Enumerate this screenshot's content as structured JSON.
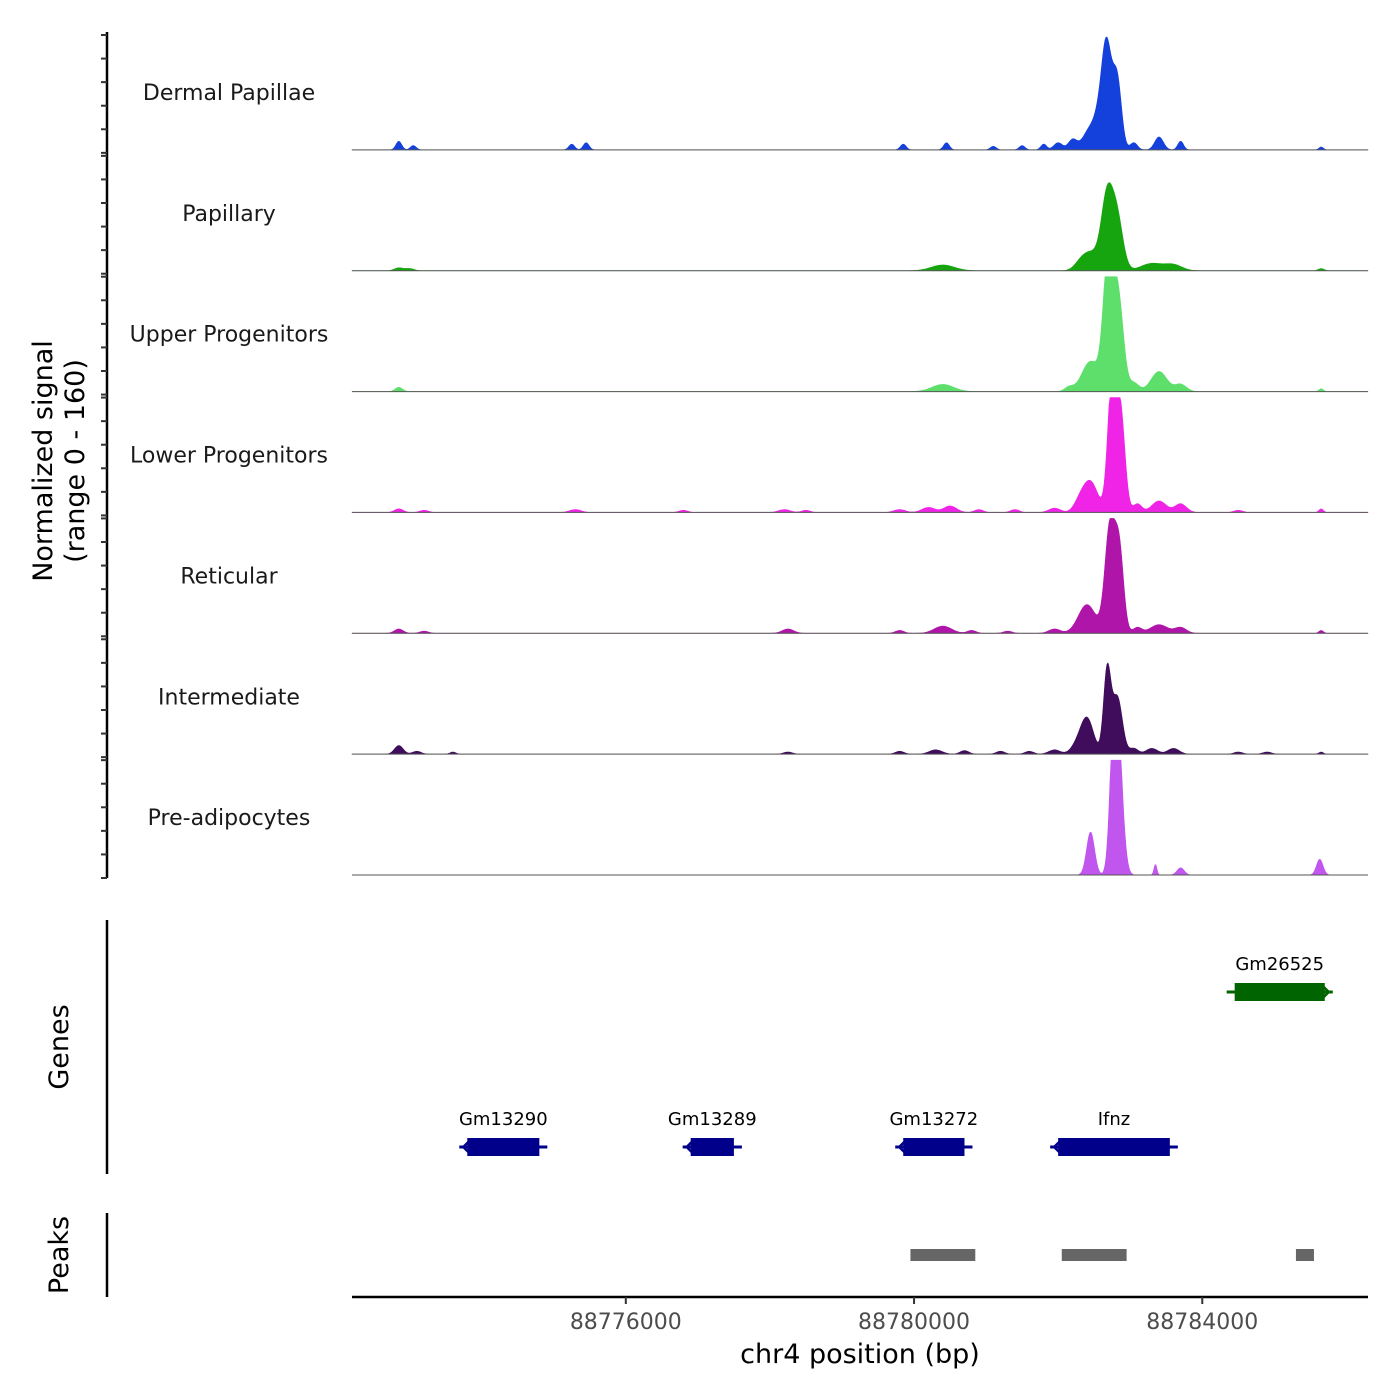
{
  "chart_data": {
    "type": "area",
    "title": "",
    "chromosome": "chr4",
    "xlabel": "chr4 position (bp)",
    "ylabel": "Normalized signal",
    "ylabel_range": "(range 0 - 160)",
    "xlim": [
      88772200,
      88786300
    ],
    "ylim": [
      0,
      160
    ],
    "x_ticks": [
      88776000,
      88780000,
      88784000
    ],
    "x_tick_labels": [
      "88776000",
      "88780000",
      "88784000"
    ],
    "tracks": [
      {
        "name": "Dermal Papillae",
        "color": "#1440DC",
        "peaks": [
          [
            88772850,
            12,
            40
          ],
          [
            88773050,
            6,
            40
          ],
          [
            88775250,
            8,
            40
          ],
          [
            88775450,
            10,
            40
          ],
          [
            88779850,
            8,
            40
          ],
          [
            88780450,
            10,
            40
          ],
          [
            88781100,
            5,
            40
          ],
          [
            88781500,
            6,
            40
          ],
          [
            88781800,
            8,
            40
          ],
          [
            88782000,
            10,
            60
          ],
          [
            88782200,
            14,
            60
          ],
          [
            88782450,
            30,
            100
          ],
          [
            88782550,
            20,
            60
          ],
          [
            88782670,
            148,
            70
          ],
          [
            88782820,
            95,
            60
          ],
          [
            88783050,
            10,
            50
          ],
          [
            88783400,
            18,
            60
          ],
          [
            88783700,
            12,
            40
          ],
          [
            88785650,
            4,
            30
          ]
        ]
      },
      {
        "name": "Papillary",
        "color": "#16A50F",
        "peaks": [
          [
            88772850,
            4,
            60
          ],
          [
            88773000,
            3,
            60
          ],
          [
            88780400,
            8,
            160
          ],
          [
            88782300,
            6,
            80
          ],
          [
            88782450,
            25,
            120
          ],
          [
            88782680,
            100,
            80
          ],
          [
            88782820,
            70,
            80
          ],
          [
            88783300,
            10,
            150
          ],
          [
            88783600,
            8,
            120
          ],
          [
            88785650,
            3,
            40
          ]
        ]
      },
      {
        "name": "Upper Progenitors",
        "color": "#5EDF6C",
        "peaks": [
          [
            88772850,
            6,
            50
          ],
          [
            88780400,
            10,
            150
          ],
          [
            88782150,
            6,
            60
          ],
          [
            88782450,
            42,
            120
          ],
          [
            88782700,
            195,
            70
          ],
          [
            88782840,
            120,
            70
          ],
          [
            88783050,
            12,
            70
          ],
          [
            88783400,
            28,
            110
          ],
          [
            88783700,
            10,
            80
          ],
          [
            88785650,
            4,
            30
          ]
        ]
      },
      {
        "name": "Lower Progenitors",
        "color": "#F024E6",
        "peaks": [
          [
            88772850,
            5,
            60
          ],
          [
            88773200,
            3,
            60
          ],
          [
            88775300,
            4,
            80
          ],
          [
            88776800,
            3,
            60
          ],
          [
            88778200,
            4,
            80
          ],
          [
            88778500,
            3,
            60
          ],
          [
            88779800,
            4,
            80
          ],
          [
            88780200,
            7,
            90
          ],
          [
            88780500,
            9,
            90
          ],
          [
            88780900,
            4,
            60
          ],
          [
            88781400,
            4,
            60
          ],
          [
            88781950,
            6,
            80
          ],
          [
            88782300,
            14,
            80
          ],
          [
            88782450,
            42,
            100
          ],
          [
            88782750,
            190,
            60
          ],
          [
            88782870,
            130,
            60
          ],
          [
            88783100,
            12,
            60
          ],
          [
            88783400,
            16,
            100
          ],
          [
            88783700,
            12,
            80
          ],
          [
            88784500,
            3,
            60
          ],
          [
            88785650,
            5,
            30
          ]
        ]
      },
      {
        "name": "Reticular",
        "color": "#B015A9",
        "peaks": [
          [
            88772850,
            6,
            60
          ],
          [
            88773200,
            3,
            60
          ],
          [
            88778250,
            6,
            80
          ],
          [
            88779800,
            4,
            60
          ],
          [
            88780400,
            10,
            120
          ],
          [
            88780800,
            4,
            60
          ],
          [
            88781300,
            3,
            60
          ],
          [
            88781950,
            6,
            80
          ],
          [
            88782400,
            40,
            120
          ],
          [
            88782720,
            150,
            70
          ],
          [
            88782850,
            110,
            60
          ],
          [
            88783100,
            8,
            60
          ],
          [
            88783400,
            12,
            120
          ],
          [
            88783700,
            8,
            80
          ],
          [
            88785650,
            4,
            30
          ]
        ]
      },
      {
        "name": "Intermediate",
        "color": "#3F0D5C",
        "peaks": [
          [
            88772850,
            12,
            60
          ],
          [
            88773100,
            4,
            60
          ],
          [
            88773600,
            3,
            40
          ],
          [
            88778250,
            3,
            60
          ],
          [
            88779800,
            4,
            60
          ],
          [
            88780300,
            6,
            90
          ],
          [
            88780700,
            5,
            60
          ],
          [
            88781200,
            4,
            60
          ],
          [
            88781600,
            4,
            60
          ],
          [
            88781950,
            6,
            80
          ],
          [
            88782250,
            10,
            80
          ],
          [
            88782400,
            50,
            90
          ],
          [
            88782680,
            115,
            50
          ],
          [
            88782820,
            80,
            70
          ],
          [
            88783050,
            8,
            60
          ],
          [
            88783300,
            8,
            80
          ],
          [
            88783600,
            8,
            80
          ],
          [
            88784500,
            3,
            60
          ],
          [
            88784900,
            3,
            60
          ],
          [
            88785650,
            3,
            30
          ]
        ]
      },
      {
        "name": "Pre-adipocytes",
        "color": "#C056EE",
        "peaks": [
          [
            88782450,
            60,
            55
          ],
          [
            88782780,
            220,
            55
          ],
          [
            88782850,
            120,
            60
          ],
          [
            88783350,
            15,
            20
          ],
          [
            88783700,
            10,
            50
          ],
          [
            88785630,
            22,
            45
          ]
        ]
      }
    ],
    "genes": [
      {
        "name": "Gm13290",
        "start": 88773800,
        "end": 88774800,
        "strand": "-",
        "row": 2,
        "color": "#00008B"
      },
      {
        "name": "Gm13289",
        "start": 88776900,
        "end": 88777500,
        "strand": "-",
        "row": 2,
        "color": "#00008B"
      },
      {
        "name": "Gm13272",
        "start": 88779850,
        "end": 88780700,
        "strand": "-",
        "row": 2,
        "color": "#00008B"
      },
      {
        "name": "Ifnz",
        "start": 88782000,
        "end": 88783550,
        "strand": "-",
        "row": 2,
        "color": "#00008B"
      },
      {
        "name": "Gm26525",
        "start": 88784450,
        "end": 88785700,
        "strand": "+",
        "row": 1,
        "color": "#006400"
      }
    ],
    "genes_label": "Genes",
    "peaks": [
      [
        88779950,
        88780850
      ],
      [
        88782050,
        88782950
      ],
      [
        88785300,
        88785550
      ]
    ],
    "peaks_label": "Peaks",
    "peak_color": "#666666"
  }
}
